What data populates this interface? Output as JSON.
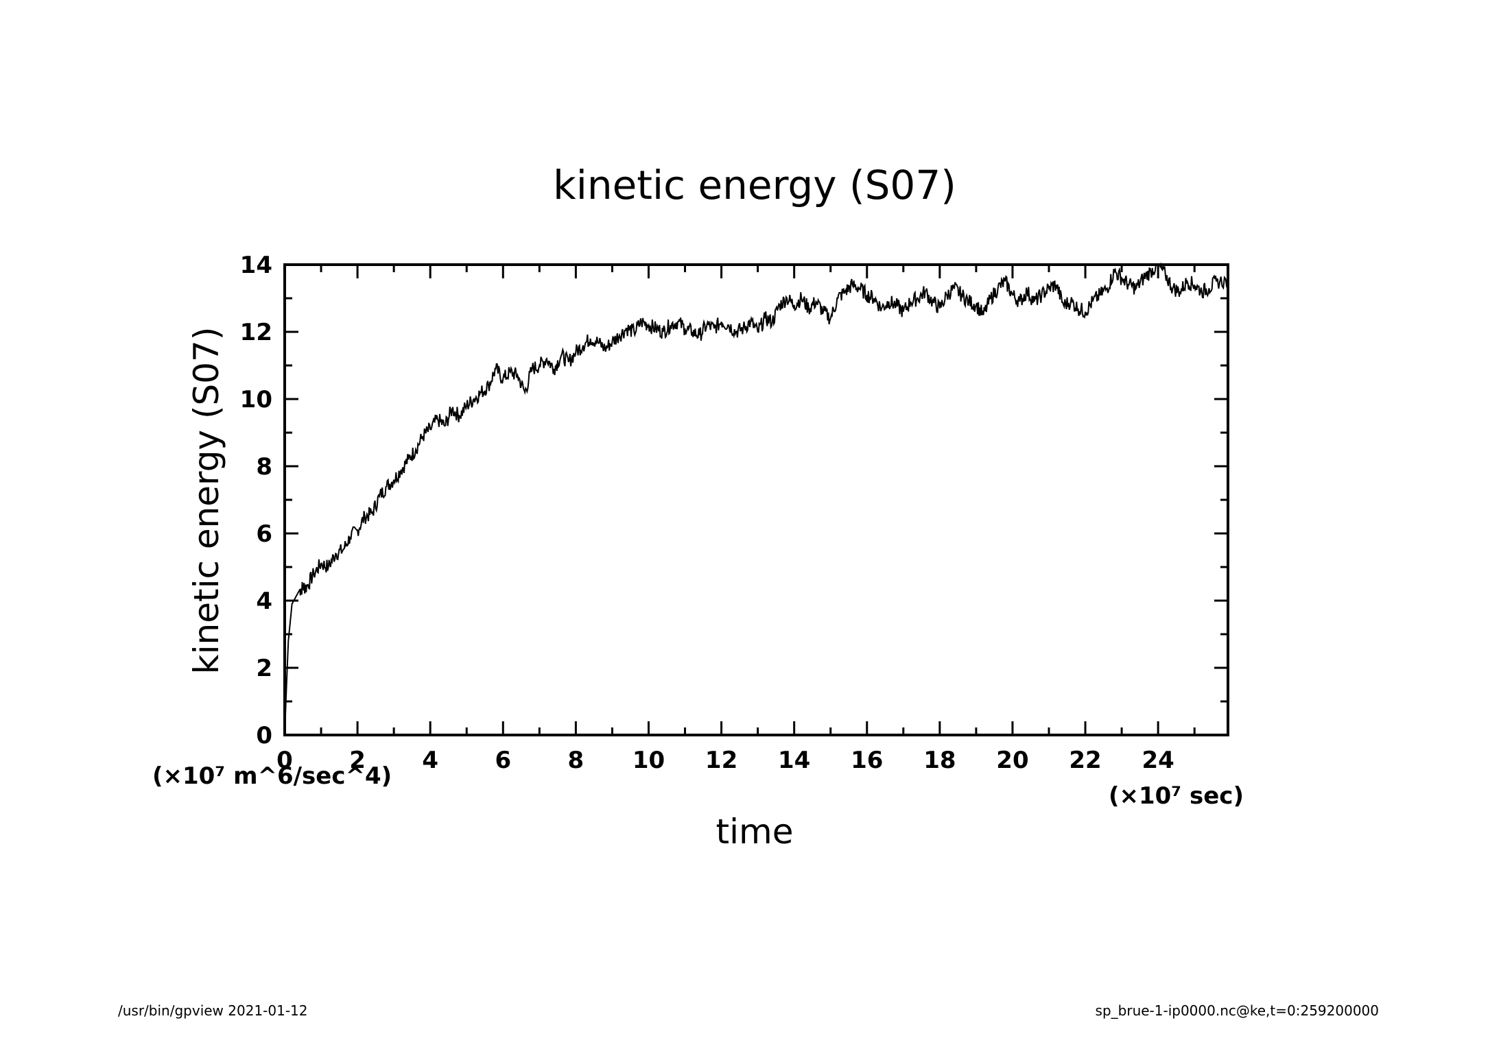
{
  "chart_data": {
    "type": "line",
    "title": "kinetic energy (S07)",
    "xlabel": "time",
    "ylabel": "kinetic energy (S07)",
    "x_unit": "(×10⁷ sec)",
    "y_unit": "(×10⁷ m^6/sec^4)",
    "xlim": [
      0,
      25.92
    ],
    "ylim": [
      0,
      14
    ],
    "x_ticks": [
      0,
      2,
      4,
      6,
      8,
      10,
      12,
      14,
      16,
      18,
      20,
      22,
      24
    ],
    "y_ticks": [
      0,
      2,
      4,
      6,
      8,
      10,
      12,
      14
    ],
    "grid": false,
    "series": [
      {
        "values_x": [
          0,
          0.05,
          0.1,
          0.2,
          0.3,
          0.4,
          0.5,
          0.6,
          0.8,
          1.0,
          1.2,
          1.4,
          1.6,
          1.8,
          2.0,
          2.2,
          2.4,
          2.6,
          2.8,
          3.0,
          3.2,
          3.4,
          3.6,
          3.8,
          4.0,
          4.2,
          4.4,
          4.6,
          4.8,
          5.0,
          5.2,
          5.4,
          5.6,
          5.8,
          6.0,
          6.2,
          6.4,
          6.6,
          6.8,
          7.0,
          7.2,
          7.4,
          7.6,
          7.8,
          8.0,
          8.2,
          8.4,
          8.6,
          8.8,
          9.0,
          9.2,
          9.4,
          9.6,
          9.8,
          10.0,
          10.2,
          10.4,
          10.6,
          10.8,
          11.0,
          11.2,
          11.4,
          11.6,
          11.8,
          12.0,
          12.2,
          12.4,
          12.6,
          12.8,
          13.0,
          13.2,
          13.4,
          13.6,
          13.8,
          14.0,
          14.2,
          14.4,
          14.6,
          14.8,
          15.0,
          15.2,
          15.4,
          15.6,
          15.8,
          16.0,
          16.2,
          16.4,
          16.6,
          16.8,
          17.0,
          17.2,
          17.4,
          17.6,
          17.8,
          18.0,
          18.2,
          18.4,
          18.6,
          18.8,
          19.0,
          19.2,
          19.4,
          19.6,
          19.8,
          20.0,
          20.2,
          20.4,
          20.6,
          20.8,
          21.0,
          21.2,
          21.4,
          21.6,
          21.8,
          22.0,
          22.2,
          22.4,
          22.6,
          22.8,
          23.0,
          23.2,
          23.4,
          23.6,
          23.8,
          24.0,
          24.2,
          24.4,
          24.6,
          24.8,
          25.0,
          25.2,
          25.4,
          25.6,
          25.92
        ],
        "values_y": [
          0,
          1.5,
          2.8,
          3.9,
          4.1,
          4.3,
          4.4,
          4.4,
          4.8,
          5.1,
          5.0,
          5.4,
          5.5,
          5.9,
          6.1,
          6.5,
          6.6,
          7.1,
          7.4,
          7.6,
          7.9,
          8.2,
          8.5,
          8.9,
          9.1,
          9.4,
          9.2,
          9.7,
          9.5,
          9.8,
          10.0,
          10.2,
          10.4,
          10.9,
          10.6,
          10.8,
          10.7,
          10.2,
          10.9,
          11.0,
          11.2,
          10.9,
          11.3,
          11.1,
          11.4,
          11.6,
          11.8,
          11.7,
          11.5,
          11.7,
          11.9,
          12.1,
          12.0,
          12.3,
          12.2,
          12.1,
          12.0,
          12.2,
          12.3,
          12.1,
          12.0,
          11.9,
          12.2,
          12.1,
          12.3,
          12.2,
          12.0,
          12.1,
          12.3,
          12.0,
          12.4,
          12.3,
          12.8,
          13.0,
          12.8,
          13.0,
          12.7,
          12.9,
          12.6,
          12.4,
          13.0,
          13.2,
          13.4,
          13.3,
          13.1,
          13.0,
          12.7,
          12.9,
          12.8,
          12.6,
          12.9,
          13.0,
          13.2,
          12.9,
          12.7,
          13.1,
          13.3,
          13.1,
          12.9,
          12.8,
          12.5,
          13.0,
          13.3,
          13.5,
          13.1,
          12.9,
          13.2,
          12.9,
          13.1,
          13.3,
          13.4,
          12.8,
          12.9,
          12.7,
          12.6,
          12.9,
          13.1,
          13.3,
          13.8,
          13.6,
          13.4,
          13.3,
          13.6,
          13.8,
          14.0,
          13.7,
          13.3,
          13.2,
          13.5,
          13.4,
          13.2,
          13.3,
          13.5,
          13.5
        ]
      }
    ]
  },
  "footer": {
    "left": "/usr/bin/gpview   2021-01-12",
    "right": "sp_brue-1-ip0000.nc@ke,t=0:259200000"
  }
}
